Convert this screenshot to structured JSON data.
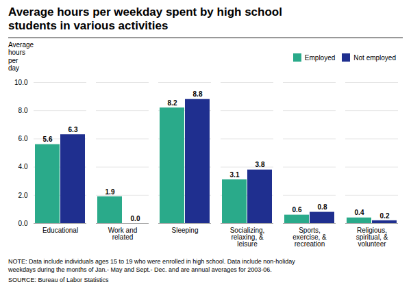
{
  "chart_data": {
    "type": "bar",
    "title": "Average hours per weekday spent by high school\nstudents in various activities",
    "y_label": "Average\nhours\nper\nday",
    "categories": [
      "Educational",
      "Work and\nrelated",
      "Sleeping",
      "Socializing,\nrelaxing, &\nleisure",
      "Sports,\nexercise, &\nrecreation",
      "Religious,\nspiritual, &\nvolunteer"
    ],
    "series": [
      {
        "name": "Employed",
        "color": "#2aaa8a",
        "values": [
          5.6,
          1.9,
          8.2,
          3.1,
          0.6,
          0.4
        ],
        "value_labels": [
          "5.6",
          "1.9",
          "8.2",
          "3.1",
          "0.6",
          "0.4"
        ]
      },
      {
        "name": "Not employed",
        "color": "#1f2f8f",
        "values": [
          6.3,
          0.0,
          8.8,
          3.8,
          0.8,
          0.2
        ],
        "value_labels": [
          "6.3",
          "0.0",
          "8.8",
          "3.8",
          "0.8",
          "0.2"
        ]
      }
    ],
    "ylim": [
      0,
      10.0
    ],
    "yticks": [
      {
        "value": 0.0,
        "label": "0.0"
      },
      {
        "value": 2.0,
        "label": "2.0"
      },
      {
        "value": 4.0,
        "label": "4.0"
      },
      {
        "value": 6.0,
        "label": "6.0"
      },
      {
        "value": 8.0,
        "label": "8.0"
      },
      {
        "value": 10.0,
        "label": "10.0"
      }
    ],
    "grid": true,
    "legend": "upper right",
    "data_labels": true,
    "note": "NOTE: Data include individuals ages 15 to 19 who were enrolled in high school. Data include non-holiday\nweekdays during the months of Jan.- May and Sept.- Dec. and are annual averages for 2003-06.",
    "source": "SOURCE: Bureau of Labor Statistics"
  }
}
